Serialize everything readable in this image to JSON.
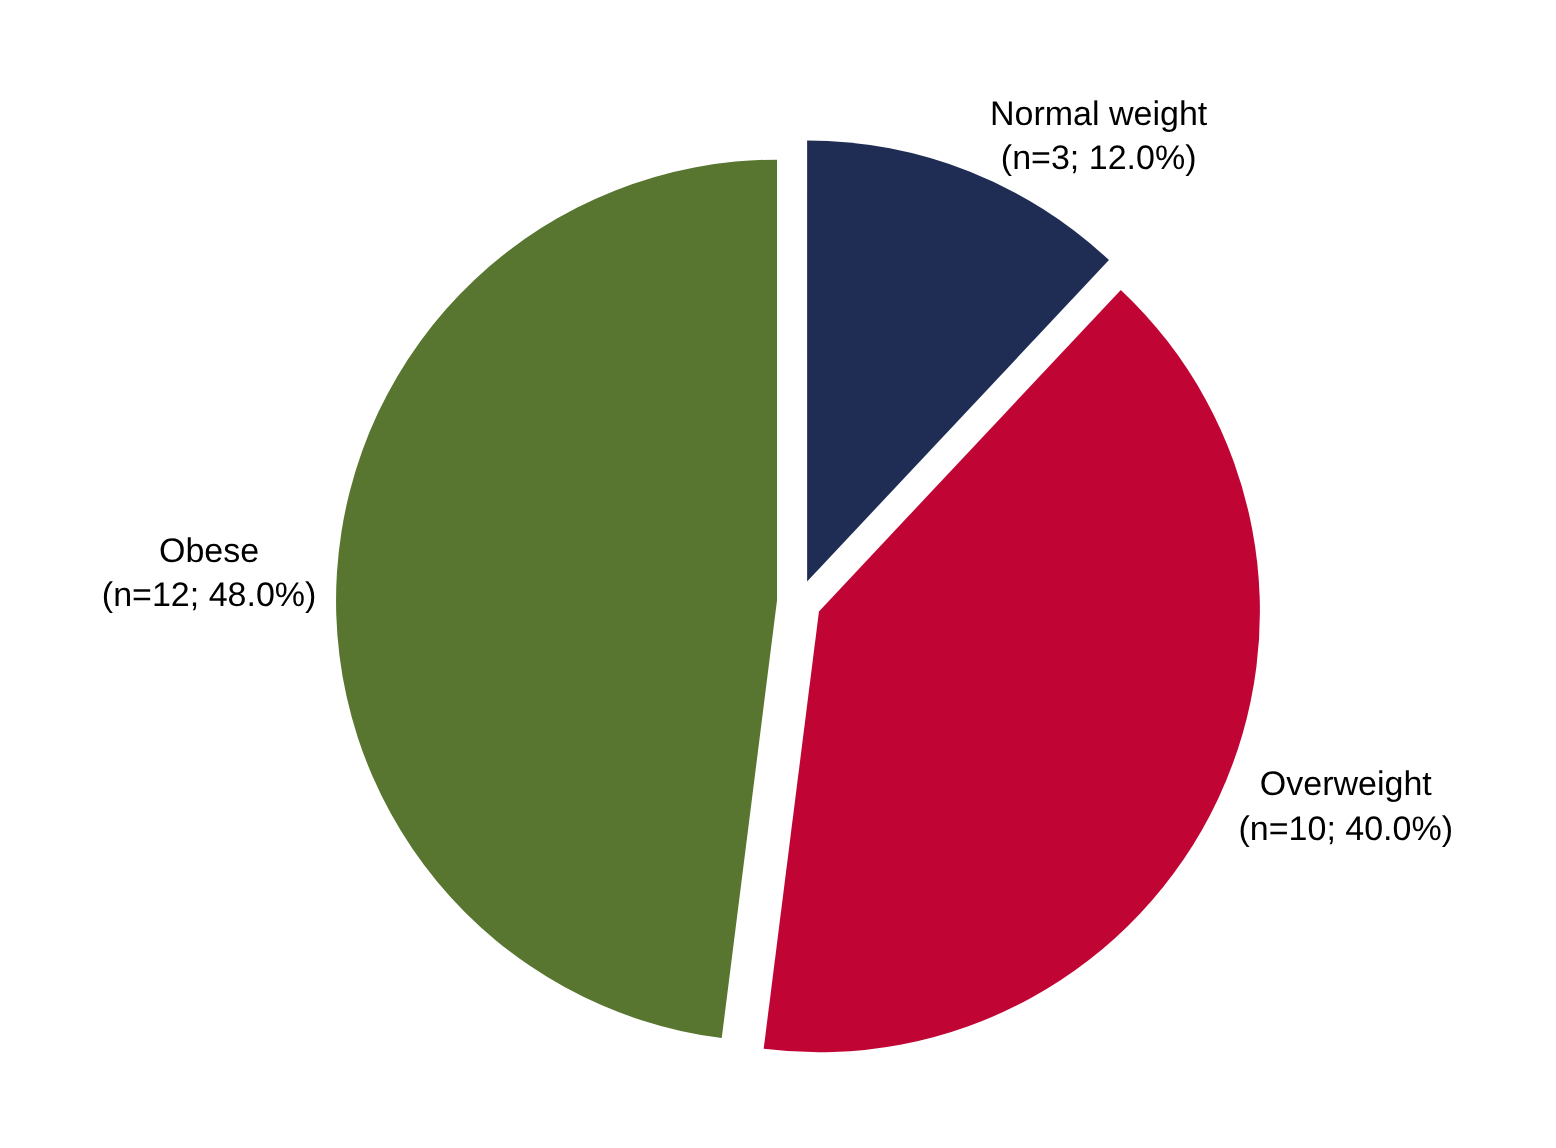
{
  "chart_data": {
    "type": "pie",
    "categories": [
      "Normal weight",
      "Overweight",
      "Obese"
    ],
    "values": [
      3,
      10,
      12
    ],
    "value_labels": [
      "(n=3; 12.0%)",
      "(n=10; 40.0%)",
      "(n=12; 48.0%)"
    ],
    "colors": [
      "#1f2d54",
      "#c00535",
      "#58762f"
    ],
    "legend": false
  }
}
